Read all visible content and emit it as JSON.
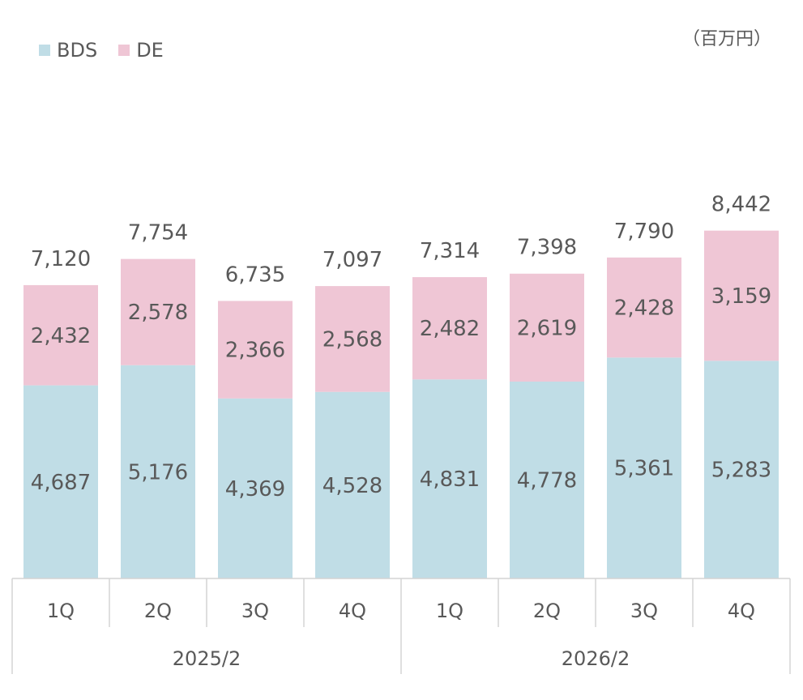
{
  "chart_data": {
    "type": "bar",
    "stacked": true,
    "unit_label": "（百万円）",
    "categories": [
      "1Q",
      "2Q",
      "3Q",
      "4Q",
      "1Q",
      "2Q",
      "3Q",
      "4Q"
    ],
    "groups": [
      {
        "label": "2025/2",
        "span": 4
      },
      {
        "label": "2026/2",
        "span": 4
      }
    ],
    "series": [
      {
        "name": "BDS",
        "color": "#c0dde6",
        "values": [
          4687,
          5176,
          4369,
          4528,
          4831,
          4778,
          5361,
          5283
        ]
      },
      {
        "name": "DE",
        "color": "#efc6d5",
        "values": [
          2432,
          2578,
          2366,
          2568,
          2482,
          2619,
          2428,
          3159
        ]
      }
    ],
    "totals": [
      7120,
      7754,
      6735,
      7097,
      7314,
      7398,
      7790,
      8442
    ],
    "legend_position": "top-left",
    "grid": false
  }
}
